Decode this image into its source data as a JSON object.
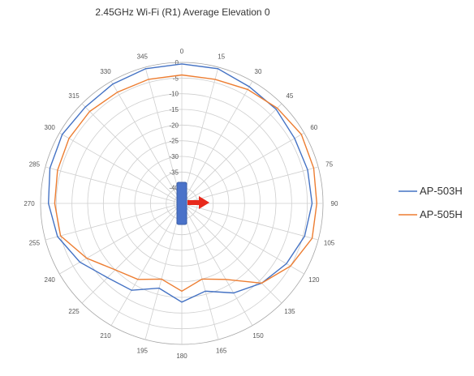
{
  "chart_data": {
    "type": "polar-line",
    "title": "2.45GHz Wi-Fi (R1) Average Elevation 0",
    "angle_labels": [
      "0",
      "15",
      "30",
      "45",
      "60",
      "75",
      "90",
      "105",
      "120",
      "135",
      "150",
      "165",
      "180",
      "195",
      "210",
      "225",
      "240",
      "255",
      "270",
      "285",
      "300",
      "315",
      "330",
      "345"
    ],
    "angles_deg": [
      0,
      15,
      30,
      45,
      60,
      75,
      90,
      105,
      120,
      135,
      150,
      165,
      180,
      195,
      210,
      225,
      240,
      255,
      270,
      285,
      300,
      315,
      330,
      345
    ],
    "radial_ticks": [
      0,
      -5,
      -10,
      -15,
      -20,
      -25,
      -30,
      -35,
      -40
    ],
    "radial_labels": [
      "0",
      "-5",
      "-10",
      "-15",
      "-20",
      "-25",
      "-30",
      "-35",
      "-40"
    ],
    "r_range": [
      -45,
      0
    ],
    "grid": true,
    "legend_position": "right",
    "series": [
      {
        "name": "AP-503H",
        "color": "#4472c4",
        "values": [
          -0.5,
          -0.5,
          -2,
          -2.5,
          -3.5,
          -3.5,
          -3.5,
          -4.5,
          -6.5,
          -9,
          -12,
          -16,
          -13.5,
          -17,
          -13,
          -11.5,
          -7.5,
          -4,
          -2.5,
          -1.5,
          -1,
          -1.5,
          -1,
          -0.5
        ]
      },
      {
        "name": "AP-505H",
        "color": "#ed7d31",
        "values": [
          -4,
          -4,
          -3,
          -2,
          -1,
          -1.5,
          -2,
          -2,
          -5,
          -9,
          -17,
          -20,
          -17,
          -20,
          -17,
          -15,
          -10,
          -5,
          -4.5,
          -4,
          -3.5,
          -3.5,
          -4,
          -4
        ]
      }
    ]
  }
}
